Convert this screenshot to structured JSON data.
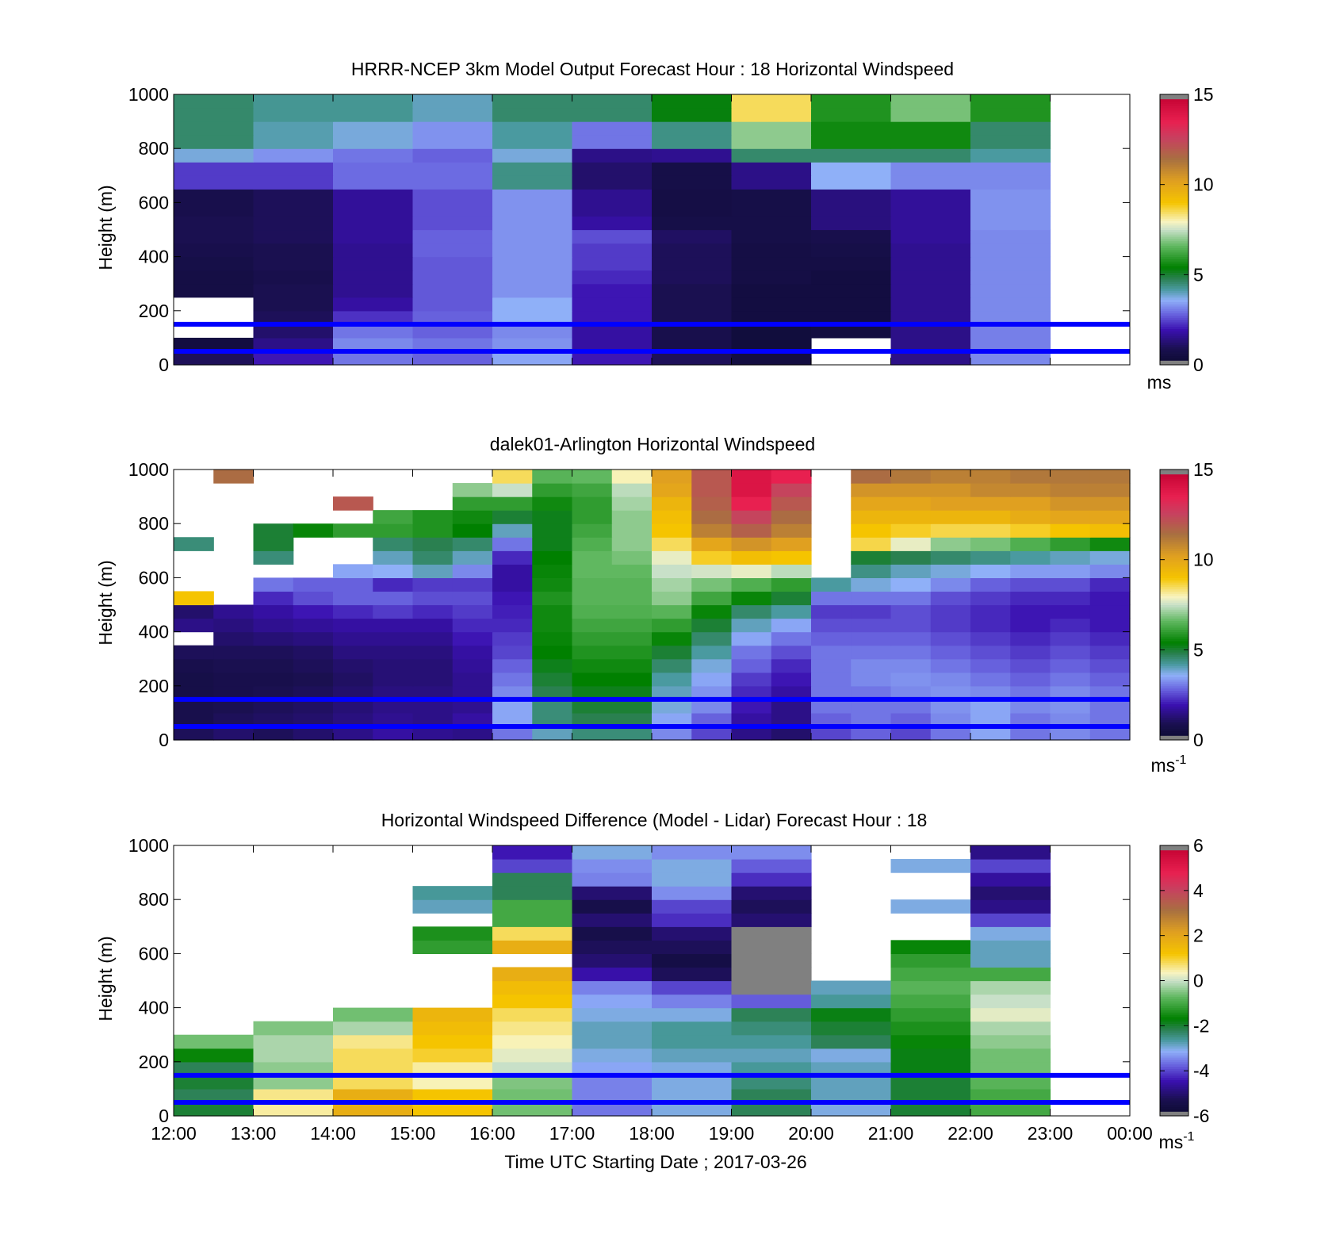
{
  "figure": {
    "xaxis_title": "Time UTC  Starting Date ; 2017-03-26",
    "x_tick_labels": [
      "12:00",
      "13:00",
      "14:00",
      "15:00",
      "16:00",
      "17:00",
      "18:00",
      "19:00",
      "20:00",
      "21:00",
      "22:00",
      "23:00",
      "00:00"
    ],
    "y_ticks": [
      0,
      200,
      400,
      600,
      800,
      1000
    ],
    "ylabel": "Height (m)",
    "reference_lines_m": [
      50,
      150
    ],
    "reference_line_color": "#0000ff"
  },
  "chart_data": [
    {
      "type": "heatmap",
      "title": "HRRR-NCEP 3km Model Output   Forecast Hour : 18 Horizontal Windspeed",
      "ylabel": "Height (m)",
      "ylim": [
        0,
        1000
      ],
      "xlim": [
        "12:00",
        "00:00"
      ],
      "colorbar": {
        "ticks": [
          0,
          5,
          10,
          15
        ],
        "unit": "ms",
        "unit_superscript": "",
        "range": [
          0,
          15
        ]
      },
      "hours": [
        "12:00",
        "13:00",
        "14:00",
        "15:00",
        "16:00",
        "17:00",
        "18:00",
        "19:00",
        "20:00",
        "21:00",
        "22:00"
      ],
      "levels_m": [
        25,
        75,
        125,
        175,
        225,
        275,
        325,
        375,
        425,
        475,
        525,
        575,
        625,
        675,
        725,
        775,
        825,
        875,
        925,
        975
      ],
      "values_ms": [
        [
          1.0,
          2.0,
          3.0,
          2.8,
          3.5,
          2.0,
          1.0,
          0.5,
          -1,
          1.5,
          3.2
        ],
        [
          0.5,
          1.5,
          3.2,
          3.0,
          3.3,
          1.8,
          0.8,
          0.4,
          -1,
          1.5,
          3.1
        ],
        [
          -1,
          1.2,
          3.0,
          2.8,
          3.2,
          1.8,
          0.8,
          0.4,
          0.5,
          1.5,
          3.1
        ],
        [
          -1,
          1.0,
          2.3,
          2.8,
          3.6,
          2.0,
          0.9,
          0.5,
          0.5,
          1.6,
          3.2
        ],
        [
          -1,
          0.9,
          1.8,
          2.7,
          3.6,
          2.0,
          0.9,
          0.5,
          0.5,
          1.6,
          3.2
        ],
        [
          0.6,
          0.9,
          1.6,
          2.7,
          3.3,
          2.0,
          0.9,
          0.5,
          0.5,
          1.6,
          3.2
        ],
        [
          0.6,
          0.8,
          1.6,
          2.7,
          3.3,
          2.2,
          1.0,
          0.6,
          0.5,
          1.6,
          3.2
        ],
        [
          0.7,
          0.9,
          1.6,
          2.7,
          3.3,
          2.4,
          1.0,
          0.6,
          0.6,
          1.6,
          3.2
        ],
        [
          0.8,
          0.9,
          1.6,
          2.8,
          3.3,
          2.4,
          1.0,
          0.6,
          0.7,
          1.6,
          3.2
        ],
        [
          0.9,
          1.0,
          1.7,
          2.8,
          3.3,
          2.6,
          1.1,
          0.7,
          0.8,
          1.7,
          3.2
        ],
        [
          0.9,
          1.0,
          1.7,
          2.6,
          3.3,
          1.8,
          0.7,
          0.7,
          1.4,
          1.7,
          3.3
        ],
        [
          0.8,
          1.0,
          1.7,
          2.6,
          3.3,
          1.6,
          0.6,
          0.7,
          1.4,
          1.7,
          3.3
        ],
        [
          0.8,
          1.0,
          1.7,
          2.6,
          3.3,
          1.6,
          0.6,
          0.7,
          1.4,
          1.7,
          3.3
        ],
        [
          2.4,
          2.4,
          2.9,
          2.9,
          4.4,
          1.2,
          0.7,
          1.5,
          3.6,
          3.2,
          3.2
        ],
        [
          2.4,
          2.4,
          2.9,
          2.9,
          4.4,
          1.2,
          0.7,
          1.5,
          3.6,
          3.2,
          3.2
        ],
        [
          3.8,
          3.3,
          3.0,
          2.8,
          3.8,
          1.5,
          1.6,
          4.6,
          4.6,
          4.6,
          4.2
        ],
        [
          4.6,
          4.1,
          3.8,
          3.3,
          4.2,
          3.0,
          4.4,
          7.0,
          5.6,
          5.6,
          4.6
        ],
        [
          4.6,
          4.1,
          3.8,
          3.3,
          4.2,
          3.0,
          4.4,
          7.0,
          5.6,
          5.6,
          4.6
        ],
        [
          4.6,
          4.3,
          4.3,
          4.0,
          4.6,
          4.6,
          5.3,
          8.5,
          5.8,
          6.8,
          5.8
        ],
        [
          4.6,
          4.3,
          4.3,
          4.0,
          4.6,
          4.6,
          5.3,
          8.5,
          5.8,
          6.8,
          5.8
        ]
      ]
    },
    {
      "type": "heatmap",
      "title": "dalek01-Arlington  Horizontal Windspeed",
      "ylabel": "Height (m)",
      "ylim": [
        0,
        1000
      ],
      "xlim": [
        "12:00",
        "00:00"
      ],
      "colorbar": {
        "ticks": [
          0,
          5,
          10,
          15
        ],
        "unit": "ms",
        "unit_superscript": "-1",
        "range": [
          0,
          15
        ]
      },
      "hours": [
        "12:00",
        "12:30",
        "13:00",
        "13:30",
        "14:00",
        "14:30",
        "15:00",
        "15:30",
        "16:00",
        "16:30",
        "17:00",
        "17:30",
        "18:00",
        "18:30",
        "19:00",
        "19:30",
        "20:00",
        "20:30",
        "21:00",
        "21:30",
        "22:00",
        "22:30",
        "23:00",
        "23:30"
      ],
      "levels_m": [
        25,
        75,
        125,
        175,
        225,
        275,
        325,
        375,
        425,
        475,
        525,
        575,
        625,
        675,
        725,
        775,
        825,
        875,
        925,
        975
      ],
      "values_ms": [
        [
          1.0,
          1.2,
          1.0,
          1.2,
          1.5,
          1.8,
          1.6,
          1.5,
          3.0,
          4.0,
          4.5,
          4.5,
          3.2,
          2.5,
          1.5,
          1.2,
          2.5,
          2.8,
          2.5,
          3.0,
          3.5,
          3.0,
          3.2,
          3.0
        ],
        [
          0.8,
          1.0,
          1.1,
          1.2,
          1.4,
          1.6,
          1.5,
          1.8,
          3.5,
          4.5,
          4.8,
          4.8,
          3.5,
          2.8,
          1.8,
          1.5,
          2.8,
          3.0,
          2.8,
          3.2,
          3.5,
          3.0,
          3.2,
          3.0
        ],
        [
          0.8,
          0.9,
          1.0,
          1.1,
          1.3,
          1.5,
          1.5,
          1.6,
          3.5,
          4.5,
          5.0,
          5.0,
          3.8,
          3.2,
          2.0,
          1.5,
          3.0,
          3.0,
          3.0,
          3.3,
          3.5,
          3.2,
          3.3,
          3.0
        ],
        [
          0.7,
          0.8,
          0.9,
          1.0,
          1.2,
          1.4,
          1.4,
          1.6,
          3.2,
          4.8,
          5.2,
          5.2,
          4.0,
          3.3,
          2.2,
          1.8,
          3.0,
          3.0,
          3.2,
          3.3,
          3.2,
          3.0,
          3.2,
          3.0
        ],
        [
          0.7,
          0.8,
          0.8,
          0.9,
          1.1,
          1.3,
          1.3,
          1.6,
          3.0,
          5.0,
          5.4,
          5.4,
          4.2,
          3.5,
          2.4,
          2.0,
          3.0,
          3.2,
          3.3,
          3.2,
          3.0,
          2.8,
          3.0,
          2.8
        ],
        [
          0.8,
          0.9,
          0.9,
          1.0,
          1.2,
          1.3,
          1.3,
          1.7,
          2.8,
          5.2,
          5.6,
          5.6,
          4.6,
          3.8,
          2.8,
          2.2,
          3.0,
          3.2,
          3.2,
          3.0,
          2.8,
          2.6,
          2.8,
          2.6
        ],
        [
          1.0,
          1.0,
          1.0,
          1.1,
          1.4,
          1.4,
          1.4,
          1.8,
          2.5,
          5.4,
          5.8,
          5.8,
          5.0,
          4.2,
          3.0,
          2.6,
          3.0,
          3.0,
          3.0,
          2.8,
          2.6,
          2.4,
          2.6,
          2.4
        ],
        [
          -1,
          1.2,
          1.3,
          1.4,
          1.6,
          1.6,
          1.6,
          2.0,
          2.4,
          5.5,
          6.0,
          6.0,
          5.5,
          4.6,
          3.5,
          3.0,
          2.8,
          2.8,
          2.8,
          2.6,
          2.4,
          2.2,
          2.4,
          2.2
        ],
        [
          1.5,
          1.4,
          1.6,
          1.7,
          1.8,
          1.8,
          1.8,
          2.2,
          2.2,
          5.6,
          6.2,
          6.2,
          6.0,
          5.0,
          4.0,
          3.5,
          2.6,
          2.6,
          2.6,
          2.4,
          2.2,
          2.0,
          2.2,
          2.0
        ],
        [
          1.2,
          1.6,
          1.8,
          2.0,
          2.2,
          2.4,
          2.2,
          2.4,
          2.1,
          5.6,
          6.4,
          6.4,
          6.5,
          5.5,
          4.6,
          4.2,
          2.4,
          2.4,
          2.6,
          2.4,
          2.2,
          2.0,
          2.0,
          2.0
        ],
        [
          9.0,
          -1,
          2.2,
          2.6,
          2.8,
          2.8,
          2.6,
          2.6,
          2.0,
          5.8,
          6.5,
          6.5,
          7.0,
          6.2,
          5.5,
          5.0,
          3.0,
          3.0,
          3.0,
          2.6,
          2.4,
          2.2,
          2.2,
          2.0
        ],
        [
          -1,
          -1,
          3.0,
          2.8,
          2.8,
          2.2,
          2.4,
          2.4,
          1.8,
          5.6,
          6.5,
          6.5,
          7.2,
          6.8,
          6.4,
          6.0,
          4.2,
          3.8,
          3.6,
          3.2,
          2.8,
          2.6,
          2.6,
          2.2
        ],
        [
          -1,
          -1,
          -1,
          -1,
          3.5,
          3.6,
          4.0,
          3.2,
          1.8,
          5.5,
          6.6,
          6.6,
          7.5,
          7.6,
          7.8,
          7.4,
          -1,
          4.4,
          4.0,
          3.8,
          3.6,
          3.4,
          3.4,
          3.2
        ],
        [
          -1,
          -1,
          4.5,
          -1,
          -1,
          4.0,
          4.6,
          4.0,
          2.2,
          5.4,
          6.6,
          6.8,
          7.8,
          8.8,
          9.2,
          9.0,
          -1,
          5.0,
          4.8,
          4.6,
          4.4,
          4.2,
          4.0,
          3.8
        ],
        [
          4.5,
          -1,
          5.0,
          -1,
          -1,
          4.6,
          4.8,
          4.6,
          3.0,
          5.2,
          6.4,
          7.0,
          8.5,
          10.0,
          10.5,
          10.2,
          -1,
          8.6,
          7.8,
          7.0,
          6.8,
          6.4,
          6.0,
          5.6
        ],
        [
          -1,
          -1,
          5.0,
          5.5,
          6.0,
          6.0,
          5.8,
          5.4,
          4.0,
          5.2,
          6.2,
          7.0,
          9.0,
          11.0,
          11.8,
          11.0,
          -1,
          9.0,
          8.8,
          8.6,
          8.6,
          8.8,
          9.0,
          9.2
        ],
        [
          -1,
          -1,
          -1,
          -1,
          -1,
          6.2,
          5.8,
          5.6,
          5.0,
          5.2,
          6.0,
          7.0,
          9.2,
          11.5,
          12.5,
          11.5,
          -1,
          9.5,
          9.5,
          9.5,
          9.5,
          9.8,
          10.0,
          10.0
        ],
        [
          -1,
          -1,
          -1,
          -1,
          12.0,
          -1,
          -1,
          6.0,
          6.0,
          5.6,
          6.0,
          7.2,
          9.5,
          11.8,
          13.5,
          12.0,
          -1,
          10.0,
          10.0,
          10.2,
          10.2,
          10.2,
          10.5,
          10.5
        ],
        [
          -1,
          -1,
          -1,
          -1,
          -1,
          -1,
          -1,
          7.0,
          7.5,
          6.0,
          6.2,
          7.4,
          10.0,
          12.0,
          14.0,
          12.5,
          -1,
          10.5,
          10.5,
          10.5,
          10.8,
          10.8,
          11.0,
          11.0
        ],
        [
          -1,
          11.5,
          -1,
          -1,
          -1,
          -1,
          -1,
          -1,
          8.5,
          6.5,
          6.6,
          8.0,
          10.2,
          12.0,
          14.0,
          13.5,
          -1,
          11.5,
          11.2,
          11.0,
          11.0,
          11.2,
          11.2,
          11.2
        ]
      ]
    },
    {
      "type": "heatmap",
      "title": "Horizontal Windspeed Difference (Model - Lidar) Forecast Hour : 18",
      "ylabel": "Height (m)",
      "xlabel": "Time UTC  Starting Date ; 2017-03-26",
      "ylim": [
        0,
        1000
      ],
      "xlim": [
        "12:00",
        "00:00"
      ],
      "colorbar": {
        "ticks": [
          6,
          4,
          2,
          0,
          -2,
          -4,
          -6
        ],
        "unit": "ms",
        "unit_superscript": "-1",
        "range": [
          -6,
          6
        ]
      },
      "hours": [
        "12:00",
        "13:00",
        "14:00",
        "15:00",
        "16:00",
        "17:00",
        "18:00",
        "19:00",
        "20:00",
        "21:00",
        "22:00"
      ],
      "levels_m": [
        25,
        75,
        125,
        175,
        225,
        275,
        325,
        375,
        425,
        475,
        525,
        575,
        625,
        675,
        725,
        775,
        825,
        875,
        925,
        975
      ],
      "values_ms": [
        [
          -2.0,
          0.5,
          1.8,
          1.2,
          -0.6,
          -3.6,
          -3.0,
          -2.2,
          -3.0,
          -2.0,
          -1.0
        ],
        [
          -2.2,
          0.6,
          1.8,
          1.2,
          -0.6,
          -3.5,
          -3.0,
          -2.2,
          -2.8,
          -2.0,
          -1.0
        ],
        [
          -2.0,
          -0.4,
          0.8,
          0.4,
          -0.5,
          -3.5,
          -3.0,
          -2.4,
          -2.8,
          -2.0,
          -0.8
        ],
        [
          -2.2,
          -0.4,
          0.8,
          0.5,
          0.0,
          -3.2,
          -3.0,
          -2.6,
          -2.8,
          -1.8,
          -0.6
        ],
        [
          -1.6,
          -0.2,
          0.8,
          1.0,
          0.2,
          -3.0,
          -2.8,
          -2.8,
          -3.0,
          -1.8,
          -0.6
        ],
        [
          -0.6,
          -0.2,
          0.6,
          1.2,
          0.4,
          -2.8,
          -2.6,
          -2.6,
          -2.2,
          -1.6,
          -0.4
        ],
        [
          -9,
          -0.5,
          -0.2,
          1.4,
          0.6,
          -2.8,
          -2.6,
          -2.4,
          -2.0,
          -1.4,
          -0.2
        ],
        [
          -9,
          -9,
          -0.6,
          1.6,
          0.8,
          -3.0,
          -3.0,
          -2.2,
          -1.8,
          -1.2,
          0.2
        ],
        [
          -9,
          -9,
          -9,
          -9,
          1.2,
          -3.2,
          -3.5,
          -3.8,
          -2.6,
          -1.0,
          0.0
        ],
        [
          -9,
          -9,
          -9,
          -9,
          1.4,
          -3.5,
          -4.0,
          9.0,
          -2.8,
          -0.8,
          -0.2
        ],
        [
          -9,
          -9,
          -9,
          -9,
          1.8,
          -4.5,
          -5.2,
          9.0,
          -9,
          -1.0,
          -1.0
        ],
        [
          -9,
          -9,
          -9,
          -9,
          -9,
          -5.0,
          -5.5,
          9.0,
          -9,
          -1.2,
          -2.8
        ],
        [
          -9,
          -9,
          -9,
          -1.2,
          1.8,
          -5.2,
          -5.2,
          9.0,
          -9,
          -1.6,
          -2.8
        ],
        [
          -9,
          -9,
          -9,
          -1.4,
          0.8,
          -5.4,
          -5.0,
          9.0,
          -9,
          -9,
          -3.0
        ],
        [
          -9,
          -9,
          -9,
          -9,
          -1.0,
          -5.0,
          -4.2,
          -5.0,
          -9,
          -9,
          -4.0
        ],
        [
          -9,
          -9,
          -9,
          -2.8,
          -1.0,
          -5.4,
          -4.0,
          -5.2,
          -9,
          -3.0,
          -4.8
        ],
        [
          -9,
          -9,
          -9,
          -2.6,
          -2.2,
          -5.0,
          -3.4,
          -5.0,
          -9,
          -9,
          -5.0
        ],
        [
          -9,
          -9,
          -9,
          -9,
          -2.2,
          -3.5,
          -3.0,
          -4.2,
          -9,
          -9,
          -4.6
        ],
        [
          -9,
          -9,
          -9,
          -9,
          -4.0,
          -3.4,
          -3.0,
          -3.8,
          -9,
          -3.0,
          -4.0
        ],
        [
          -9,
          -9,
          -9,
          -9,
          -4.4,
          -3.0,
          -3.4,
          -3.4,
          -9,
          -9,
          -4.8
        ]
      ]
    }
  ]
}
